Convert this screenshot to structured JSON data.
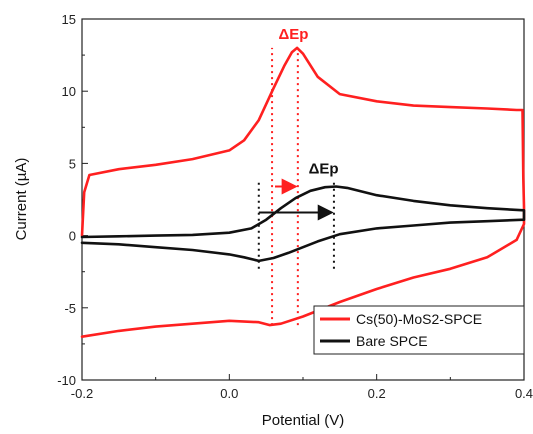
{
  "chart_data": {
    "type": "line",
    "xlabel": "Potential (V)",
    "ylabel": "Current (µA)",
    "xlim": [
      -0.2,
      0.4
    ],
    "ylim": [
      -10,
      15
    ],
    "x_ticks": [
      -0.2,
      0.0,
      0.2,
      0.4
    ],
    "x_tick_labels": [
      "-0.2",
      "0.0",
      "0.2",
      "0.4"
    ],
    "y_ticks": [
      -10,
      -5,
      0,
      5,
      10,
      15
    ],
    "y_tick_labels": [
      "-10",
      "-5",
      "0",
      "5",
      "10",
      "15"
    ],
    "legend_position": "bottom-right",
    "grid": false,
    "series": [
      {
        "name": "Cs(50)-MoS2-SPCE",
        "color": "#ff2020",
        "x": [
          -0.2,
          -0.197,
          -0.19,
          -0.15,
          -0.1,
          -0.05,
          0.0,
          0.02,
          0.04,
          0.06,
          0.075,
          0.085,
          0.092,
          0.1,
          0.12,
          0.15,
          0.2,
          0.25,
          0.3,
          0.35,
          0.39,
          0.398,
          0.399,
          0.4,
          0.4,
          0.39,
          0.35,
          0.3,
          0.25,
          0.2,
          0.15,
          0.1,
          0.07,
          0.055,
          0.04,
          0.0,
          -0.05,
          -0.1,
          -0.15,
          -0.2
        ],
        "y": [
          0.0,
          3.0,
          4.2,
          4.6,
          4.9,
          5.3,
          5.9,
          6.6,
          8.0,
          10.2,
          11.8,
          12.7,
          13.0,
          12.6,
          11.0,
          9.8,
          9.3,
          9.0,
          8.9,
          8.8,
          8.7,
          8.7,
          4.0,
          2.0,
          0.8,
          -0.3,
          -1.5,
          -2.3,
          -2.9,
          -3.7,
          -4.6,
          -5.6,
          -6.1,
          -6.2,
          -6.0,
          -5.9,
          -6.1,
          -6.3,
          -6.6,
          -7.0
        ]
      },
      {
        "name": "Bare SPCE",
        "color": "#111111",
        "x": [
          -0.2,
          -0.15,
          -0.1,
          -0.05,
          0.0,
          0.03,
          0.05,
          0.07,
          0.09,
          0.11,
          0.13,
          0.145,
          0.16,
          0.2,
          0.25,
          0.3,
          0.35,
          0.4,
          0.4,
          0.35,
          0.3,
          0.25,
          0.2,
          0.15,
          0.12,
          0.1,
          0.08,
          0.06,
          0.04,
          0.02,
          0.0,
          -0.05,
          -0.1,
          -0.15,
          -0.2
        ],
        "y": [
          -0.1,
          -0.05,
          0.0,
          0.05,
          0.2,
          0.5,
          1.1,
          1.9,
          2.6,
          3.1,
          3.35,
          3.4,
          3.3,
          2.8,
          2.4,
          2.1,
          1.9,
          1.75,
          1.1,
          1.0,
          0.9,
          0.7,
          0.5,
          0.1,
          -0.4,
          -0.8,
          -1.2,
          -1.55,
          -1.75,
          -1.5,
          -1.3,
          -1.0,
          -0.8,
          -0.6,
          -0.5
        ]
      }
    ],
    "annotations": [
      {
        "label": "ΔEp",
        "color": "#ff2020",
        "lines_x": [
          0.058,
          0.093
        ],
        "lines_y": [
          -6.2,
          13.0
        ],
        "arrow_x": [
          0.062,
          0.09
        ],
        "arrow_y": 3.4,
        "text_x": 0.087,
        "text_y": 13.6
      },
      {
        "label": "ΔEp",
        "color": "#111111",
        "lines_x": [
          0.04,
          0.142
        ],
        "lines_y": [
          -2.3,
          3.9
        ],
        "arrow_x": [
          0.04,
          0.139
        ],
        "arrow_y": 1.6,
        "text_x": 0.128,
        "text_y": 4.3
      }
    ]
  }
}
